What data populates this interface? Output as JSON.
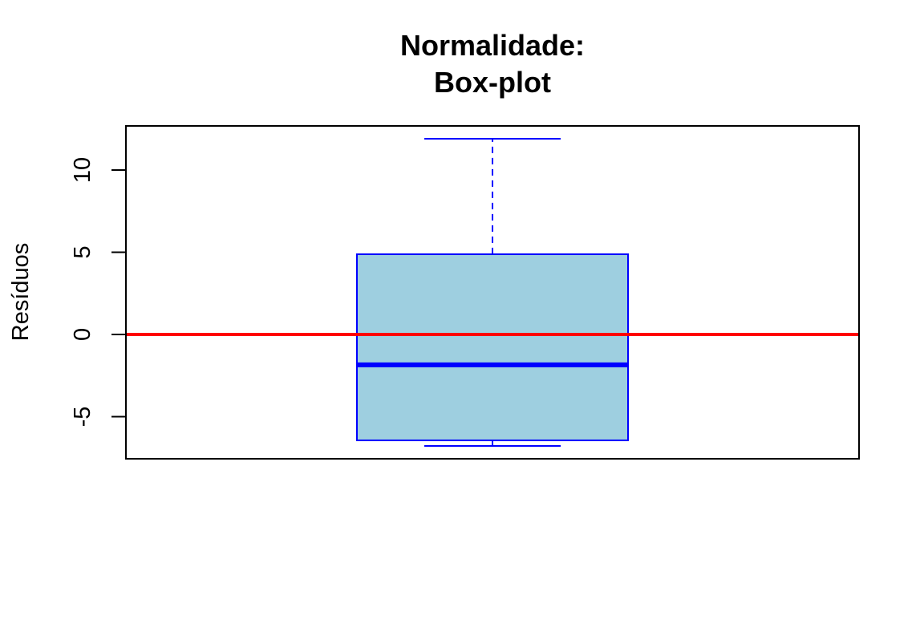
{
  "chart_data": {
    "type": "boxplot",
    "title_lines": [
      "Normalidade:",
      "Box-plot"
    ],
    "xlabel": "",
    "ylabel": "Resíduos",
    "ylim": [
      -7.56,
      12.68
    ],
    "yticks": [
      -5,
      0,
      5,
      10
    ],
    "ytick_labels": [
      "-5",
      "0",
      "5",
      "10"
    ],
    "box": {
      "whisker_low": -6.78,
      "q1": -6.44,
      "median": -1.85,
      "q3": 4.88,
      "whisker_high": 11.9
    },
    "reference_line": {
      "y": 0,
      "color": "#ff0000"
    },
    "colors": {
      "box_fill": "#9ecfe0",
      "box_border": "#0000ff",
      "median": "#0000ff",
      "axis": "#000000"
    },
    "grid": false
  }
}
